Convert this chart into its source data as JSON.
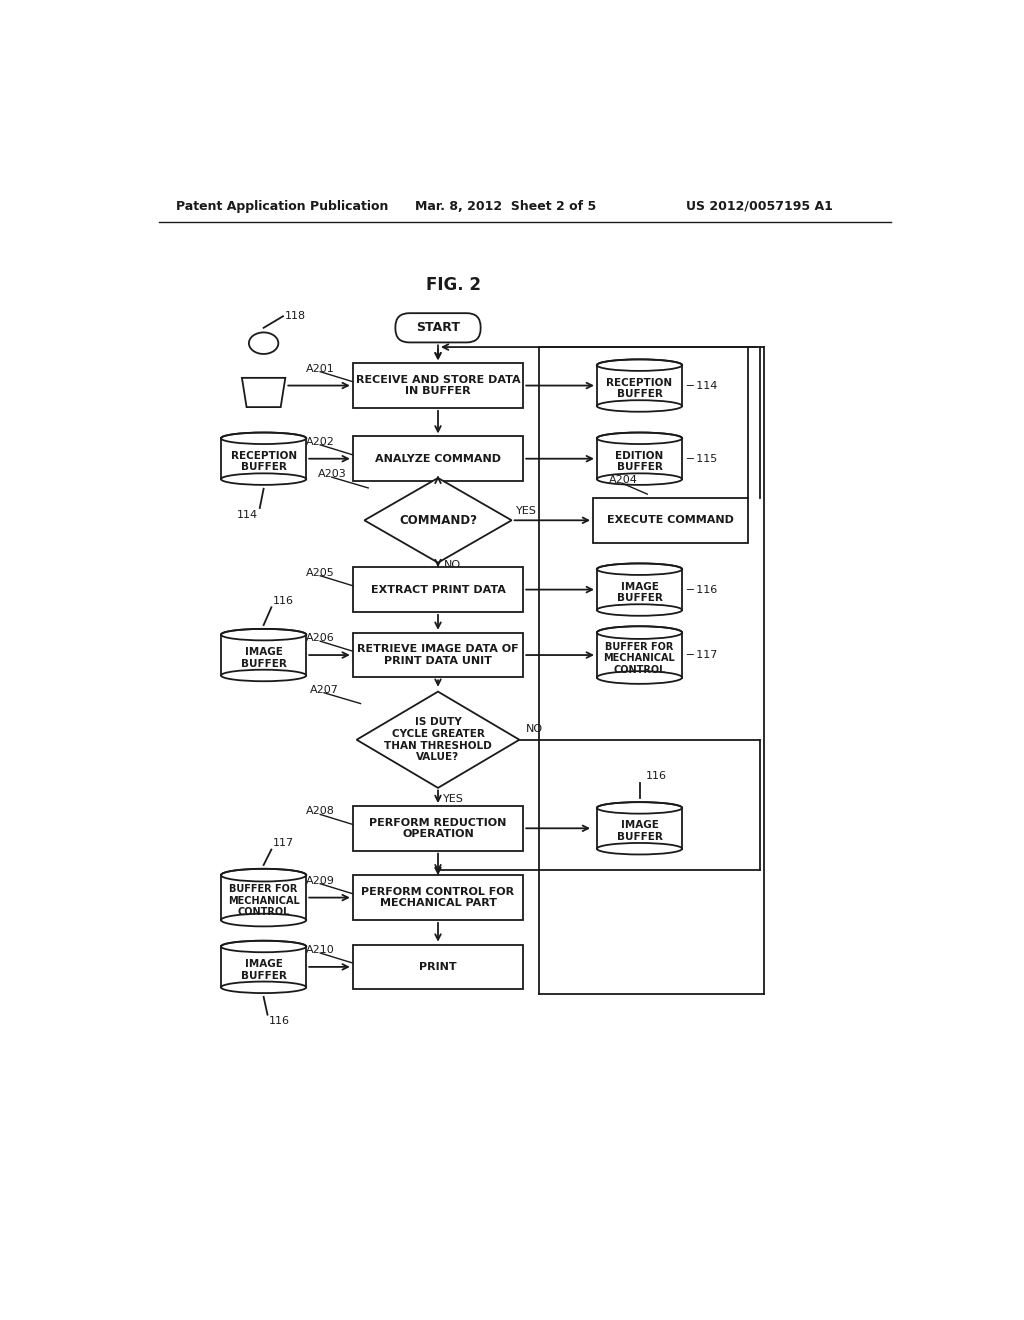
{
  "title": "FIG. 2",
  "header_left": "Patent Application Publication",
  "header_center": "Mar. 8, 2012  Sheet 2 of 5",
  "header_right": "US 2012/0057195 A1",
  "background_color": "#ffffff",
  "line_color": "#1a1a1a",
  "text_color": "#1a1a1a"
}
